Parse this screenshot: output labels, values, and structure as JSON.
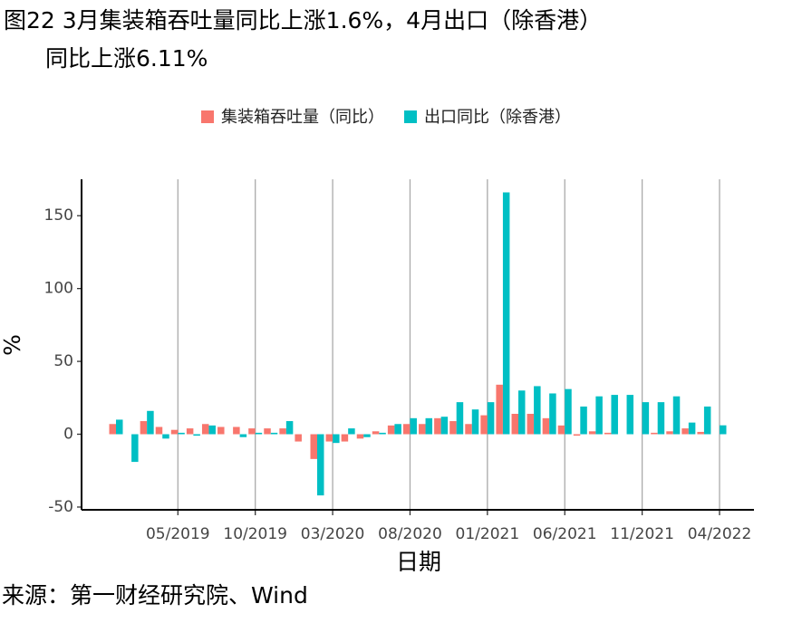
{
  "chart_data": {
    "type": "bar",
    "title": [
      "图22 3月集装箱吞吐量同比上涨1.6%，4月出口（除香港）",
      "同比上涨6.11%"
    ],
    "x_label": "日期",
    "y_label": "%",
    "source": "来源：第一财经研究院、Wind",
    "categories": [
      null,
      null,
      null,
      null,
      "05/2019",
      null,
      null,
      null,
      null,
      "10/2019",
      null,
      null,
      null,
      null,
      "03/2020",
      null,
      null,
      null,
      null,
      "08/2020",
      null,
      null,
      null,
      null,
      "01/2021",
      null,
      null,
      null,
      null,
      "06/2021",
      null,
      null,
      null,
      null,
      "11/2021",
      null,
      null,
      null,
      null,
      "04/2022"
    ],
    "series": [
      {
        "name": "集装箱吞吐量（同比）",
        "color": "#f8766d",
        "values": [
          7,
          0,
          9,
          5,
          3,
          4,
          7,
          5,
          5,
          4,
          4,
          4,
          -5,
          -17,
          -5,
          -5,
          -3,
          2,
          6,
          7,
          7,
          11,
          9,
          7,
          13,
          34,
          14,
          14,
          11,
          6,
          -1,
          2,
          1,
          0,
          0,
          1,
          2,
          4,
          1.6,
          null
        ]
      },
      {
        "name": "出口同比（除香港）",
        "color": "#00bfc4",
        "values": [
          10,
          -19,
          16,
          -3,
          1,
          -1,
          6,
          0,
          -2,
          1,
          1,
          9,
          0,
          -42,
          -6,
          4,
          -2,
          1,
          7,
          11,
          11,
          12,
          22,
          17,
          22,
          166,
          30,
          33,
          28,
          31,
          19,
          26,
          27,
          27,
          22,
          22,
          26,
          8,
          19,
          6.11
        ]
      }
    ],
    "ylim": [
      -55,
      175
    ],
    "yticks": [
      -50,
      0,
      50,
      100,
      150
    ],
    "grid": true
  }
}
